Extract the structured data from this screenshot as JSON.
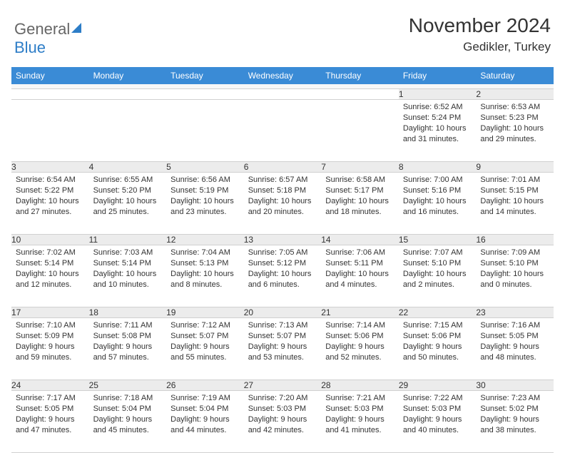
{
  "logo": {
    "part1": "General",
    "part2": "Blue"
  },
  "title": "November 2024",
  "location": "Gedikler, Turkey",
  "colors": {
    "header_bg": "#3a8bd6",
    "header_text": "#ffffff",
    "daynum_bg": "#ececec",
    "border": "#d0d0d0",
    "text": "#333333",
    "logo_gray": "#666666",
    "logo_blue": "#2d7dc7"
  },
  "weekdays": [
    "Sunday",
    "Monday",
    "Tuesday",
    "Wednesday",
    "Thursday",
    "Friday",
    "Saturday"
  ],
  "weeks": [
    [
      null,
      null,
      null,
      null,
      null,
      {
        "n": "1",
        "sr": "Sunrise: 6:52 AM",
        "ss": "Sunset: 5:24 PM",
        "dl1": "Daylight: 10 hours",
        "dl2": "and 31 minutes."
      },
      {
        "n": "2",
        "sr": "Sunrise: 6:53 AM",
        "ss": "Sunset: 5:23 PM",
        "dl1": "Daylight: 10 hours",
        "dl2": "and 29 minutes."
      }
    ],
    [
      {
        "n": "3",
        "sr": "Sunrise: 6:54 AM",
        "ss": "Sunset: 5:22 PM",
        "dl1": "Daylight: 10 hours",
        "dl2": "and 27 minutes."
      },
      {
        "n": "4",
        "sr": "Sunrise: 6:55 AM",
        "ss": "Sunset: 5:20 PM",
        "dl1": "Daylight: 10 hours",
        "dl2": "and 25 minutes."
      },
      {
        "n": "5",
        "sr": "Sunrise: 6:56 AM",
        "ss": "Sunset: 5:19 PM",
        "dl1": "Daylight: 10 hours",
        "dl2": "and 23 minutes."
      },
      {
        "n": "6",
        "sr": "Sunrise: 6:57 AM",
        "ss": "Sunset: 5:18 PM",
        "dl1": "Daylight: 10 hours",
        "dl2": "and 20 minutes."
      },
      {
        "n": "7",
        "sr": "Sunrise: 6:58 AM",
        "ss": "Sunset: 5:17 PM",
        "dl1": "Daylight: 10 hours",
        "dl2": "and 18 minutes."
      },
      {
        "n": "8",
        "sr": "Sunrise: 7:00 AM",
        "ss": "Sunset: 5:16 PM",
        "dl1": "Daylight: 10 hours",
        "dl2": "and 16 minutes."
      },
      {
        "n": "9",
        "sr": "Sunrise: 7:01 AM",
        "ss": "Sunset: 5:15 PM",
        "dl1": "Daylight: 10 hours",
        "dl2": "and 14 minutes."
      }
    ],
    [
      {
        "n": "10",
        "sr": "Sunrise: 7:02 AM",
        "ss": "Sunset: 5:14 PM",
        "dl1": "Daylight: 10 hours",
        "dl2": "and 12 minutes."
      },
      {
        "n": "11",
        "sr": "Sunrise: 7:03 AM",
        "ss": "Sunset: 5:14 PM",
        "dl1": "Daylight: 10 hours",
        "dl2": "and 10 minutes."
      },
      {
        "n": "12",
        "sr": "Sunrise: 7:04 AM",
        "ss": "Sunset: 5:13 PM",
        "dl1": "Daylight: 10 hours",
        "dl2": "and 8 minutes."
      },
      {
        "n": "13",
        "sr": "Sunrise: 7:05 AM",
        "ss": "Sunset: 5:12 PM",
        "dl1": "Daylight: 10 hours",
        "dl2": "and 6 minutes."
      },
      {
        "n": "14",
        "sr": "Sunrise: 7:06 AM",
        "ss": "Sunset: 5:11 PM",
        "dl1": "Daylight: 10 hours",
        "dl2": "and 4 minutes."
      },
      {
        "n": "15",
        "sr": "Sunrise: 7:07 AM",
        "ss": "Sunset: 5:10 PM",
        "dl1": "Daylight: 10 hours",
        "dl2": "and 2 minutes."
      },
      {
        "n": "16",
        "sr": "Sunrise: 7:09 AM",
        "ss": "Sunset: 5:10 PM",
        "dl1": "Daylight: 10 hours",
        "dl2": "and 0 minutes."
      }
    ],
    [
      {
        "n": "17",
        "sr": "Sunrise: 7:10 AM",
        "ss": "Sunset: 5:09 PM",
        "dl1": "Daylight: 9 hours",
        "dl2": "and 59 minutes."
      },
      {
        "n": "18",
        "sr": "Sunrise: 7:11 AM",
        "ss": "Sunset: 5:08 PM",
        "dl1": "Daylight: 9 hours",
        "dl2": "and 57 minutes."
      },
      {
        "n": "19",
        "sr": "Sunrise: 7:12 AM",
        "ss": "Sunset: 5:07 PM",
        "dl1": "Daylight: 9 hours",
        "dl2": "and 55 minutes."
      },
      {
        "n": "20",
        "sr": "Sunrise: 7:13 AM",
        "ss": "Sunset: 5:07 PM",
        "dl1": "Daylight: 9 hours",
        "dl2": "and 53 minutes."
      },
      {
        "n": "21",
        "sr": "Sunrise: 7:14 AM",
        "ss": "Sunset: 5:06 PM",
        "dl1": "Daylight: 9 hours",
        "dl2": "and 52 minutes."
      },
      {
        "n": "22",
        "sr": "Sunrise: 7:15 AM",
        "ss": "Sunset: 5:06 PM",
        "dl1": "Daylight: 9 hours",
        "dl2": "and 50 minutes."
      },
      {
        "n": "23",
        "sr": "Sunrise: 7:16 AM",
        "ss": "Sunset: 5:05 PM",
        "dl1": "Daylight: 9 hours",
        "dl2": "and 48 minutes."
      }
    ],
    [
      {
        "n": "24",
        "sr": "Sunrise: 7:17 AM",
        "ss": "Sunset: 5:05 PM",
        "dl1": "Daylight: 9 hours",
        "dl2": "and 47 minutes."
      },
      {
        "n": "25",
        "sr": "Sunrise: 7:18 AM",
        "ss": "Sunset: 5:04 PM",
        "dl1": "Daylight: 9 hours",
        "dl2": "and 45 minutes."
      },
      {
        "n": "26",
        "sr": "Sunrise: 7:19 AM",
        "ss": "Sunset: 5:04 PM",
        "dl1": "Daylight: 9 hours",
        "dl2": "and 44 minutes."
      },
      {
        "n": "27",
        "sr": "Sunrise: 7:20 AM",
        "ss": "Sunset: 5:03 PM",
        "dl1": "Daylight: 9 hours",
        "dl2": "and 42 minutes."
      },
      {
        "n": "28",
        "sr": "Sunrise: 7:21 AM",
        "ss": "Sunset: 5:03 PM",
        "dl1": "Daylight: 9 hours",
        "dl2": "and 41 minutes."
      },
      {
        "n": "29",
        "sr": "Sunrise: 7:22 AM",
        "ss": "Sunset: 5:03 PM",
        "dl1": "Daylight: 9 hours",
        "dl2": "and 40 minutes."
      },
      {
        "n": "30",
        "sr": "Sunrise: 7:23 AM",
        "ss": "Sunset: 5:02 PM",
        "dl1": "Daylight: 9 hours",
        "dl2": "and 38 minutes."
      }
    ]
  ]
}
